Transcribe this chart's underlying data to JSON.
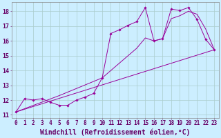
{
  "xlabel": "Windchill (Refroidissement éolien,°C)",
  "bg_color": "#cceeff",
  "line_color": "#990099",
  "grid_color": "#aacccc",
  "xlim": [
    -0.5,
    23.5
  ],
  "ylim": [
    10.8,
    18.6
  ],
  "xticks": [
    0,
    1,
    2,
    3,
    4,
    5,
    6,
    7,
    8,
    9,
    10,
    11,
    12,
    13,
    14,
    15,
    16,
    17,
    18,
    19,
    20,
    21,
    22,
    23
  ],
  "yticks": [
    11,
    12,
    13,
    14,
    15,
    16,
    17,
    18
  ],
  "data_points": [
    [
      0,
      11.2
    ],
    [
      1,
      12.1
    ],
    [
      2,
      12.0
    ],
    [
      3,
      12.1
    ],
    [
      4,
      11.85
    ],
    [
      5,
      11.65
    ],
    [
      6,
      11.65
    ],
    [
      7,
      12.0
    ],
    [
      8,
      12.2
    ],
    [
      9,
      12.45
    ],
    [
      10,
      13.5
    ],
    [
      11,
      16.5
    ],
    [
      12,
      16.75
    ],
    [
      13,
      17.05
    ],
    [
      14,
      17.3
    ],
    [
      15,
      18.25
    ],
    [
      16,
      16.0
    ],
    [
      17,
      16.15
    ],
    [
      18,
      18.15
    ],
    [
      19,
      18.05
    ],
    [
      20,
      18.25
    ],
    [
      21,
      17.45
    ],
    [
      22,
      16.1
    ],
    [
      23,
      15.4
    ]
  ],
  "smooth_line": [
    [
      0,
      11.2
    ],
    [
      5,
      12.3
    ],
    [
      10,
      13.5
    ],
    [
      14,
      15.5
    ],
    [
      15,
      16.2
    ],
    [
      16,
      16.0
    ],
    [
      17,
      16.15
    ],
    [
      18,
      17.5
    ],
    [
      19,
      17.7
    ],
    [
      20,
      18.0
    ],
    [
      21,
      17.8
    ],
    [
      22,
      16.8
    ],
    [
      23,
      15.4
    ]
  ],
  "ref_line": [
    [
      0,
      11.2
    ],
    [
      23,
      15.4
    ]
  ],
  "font_color": "#660066",
  "tick_labelsize": 5.5,
  "xlabel_fontsize": 7.0
}
